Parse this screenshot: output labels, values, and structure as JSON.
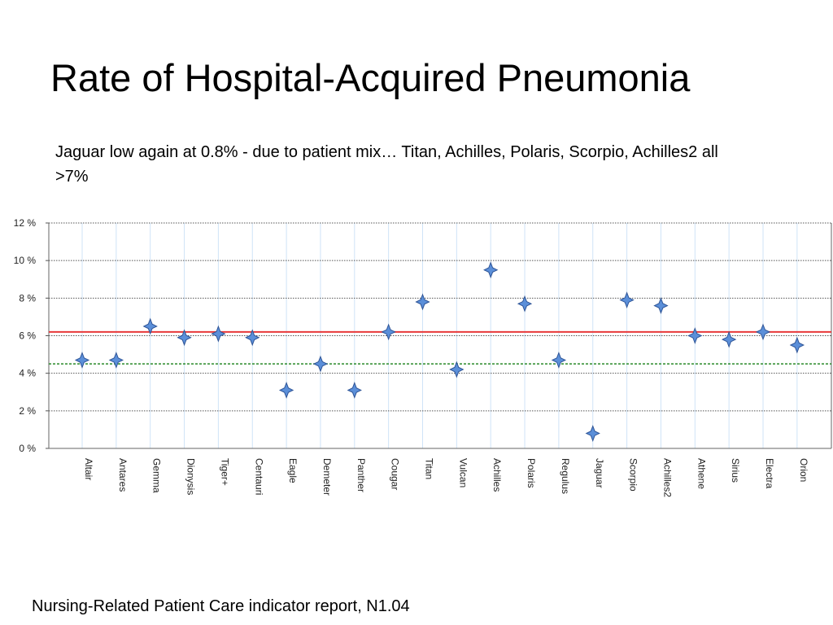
{
  "slide": {
    "title": "Rate of Hospital-Acquired Pneumonia",
    "subtitle": "Jaguar low again at 0.8% - due to patient mix… Titan, Achilles, Polaris, Scorpio, Achilles2 all >7%",
    "footer": "Nursing-Related Patient Care indicator report, N1.04"
  },
  "chart_data": {
    "type": "scatter",
    "title": "",
    "xlabel": "",
    "ylabel": "",
    "categories": [
      "Altair",
      "Antares",
      "Gemma",
      "Dionysis",
      "Tiger+",
      "Centauri",
      "Eagle",
      "Demeter",
      "Panther",
      "Cougar",
      "Titan",
      "Vulcan",
      "Achilles",
      "Polaris",
      "Regulus",
      "Jaguar",
      "Scorpio",
      "Achilles2",
      "Athene",
      "Sirius",
      "Electra",
      "Orion"
    ],
    "values": [
      4.7,
      4.7,
      6.5,
      5.9,
      6.1,
      5.9,
      3.1,
      4.5,
      3.1,
      6.2,
      7.8,
      4.2,
      9.5,
      7.7,
      4.7,
      0.8,
      7.9,
      7.6,
      6.0,
      5.8,
      6.2,
      5.5
    ],
    "ylim": [
      0,
      12
    ],
    "yticks": [
      0,
      2,
      4,
      6,
      8,
      10,
      12
    ],
    "ytick_suffix": " %",
    "reference_lines": [
      {
        "value": 6.2,
        "color": "#e8393a",
        "style": "solid"
      },
      {
        "value": 4.5,
        "color": "#2a8a2a",
        "style": "dashed"
      }
    ],
    "grid": true,
    "marker": "diamond",
    "marker_color": "#5b8fd9",
    "marker_edge_color": "#2f5597"
  }
}
